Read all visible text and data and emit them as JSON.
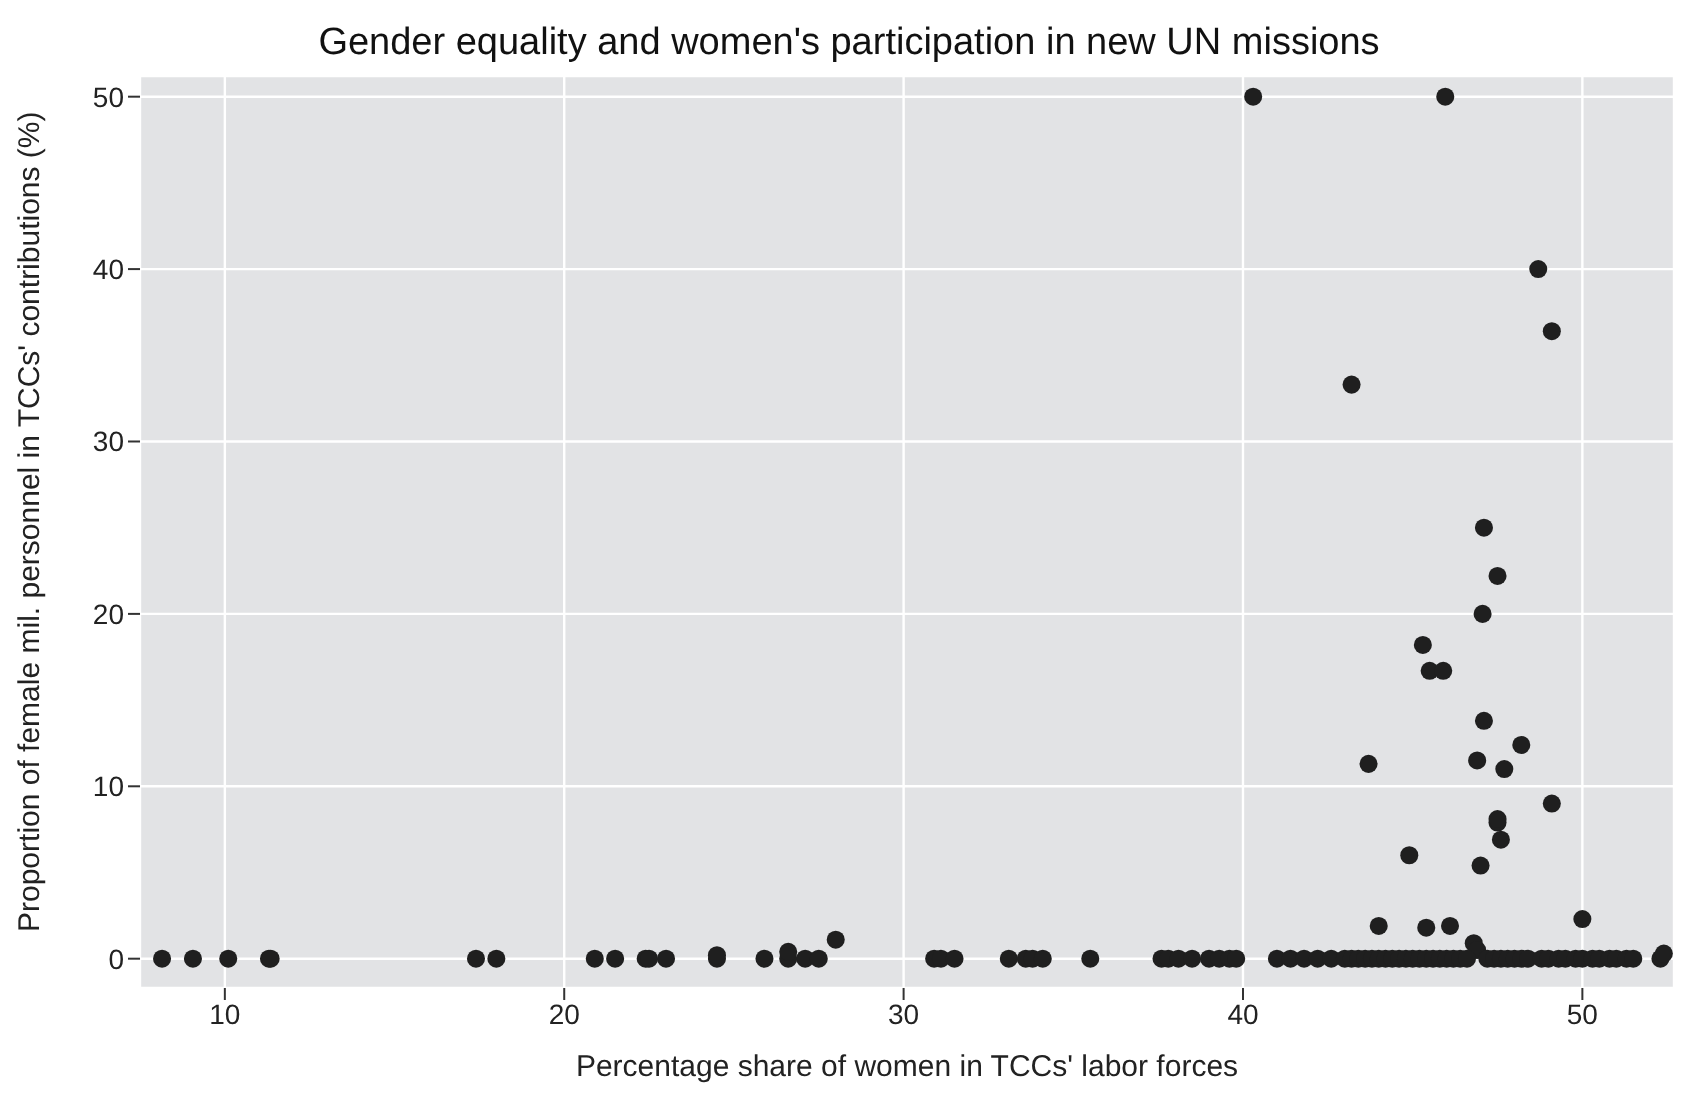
{
  "chart_data": {
    "type": "scatter",
    "title": "Gender equality and women's participation in new UN missions",
    "xlabel": "Percentage share of women in TCCs' labor forces",
    "ylabel": "Proportion of female mil. personnel in TCCs' contributions (%)",
    "x": [
      40.3,
      45.96,
      48.7,
      49.1,
      43.2,
      47.1,
      47.5,
      47.06,
      45.3,
      45.5,
      45.9,
      47.1,
      48.2,
      43.7,
      46.9,
      47.7,
      49.1,
      47.5,
      47.5,
      47.6,
      44.9,
      47.0,
      44.0,
      45.4,
      46.1,
      50.0,
      46.8,
      46.9,
      8.15,
      9.06,
      10.1,
      11.3,
      11.35,
      17.4,
      18.0,
      20.9,
      21.5,
      22.4,
      22.5,
      23.0,
      24.5,
      24.5,
      25.9,
      26.6,
      26.6,
      27.1,
      27.5,
      28.0,
      30.9,
      31.1,
      31.5,
      33.1,
      33.6,
      33.8,
      34.1,
      35.5,
      37.6,
      37.8,
      38.1,
      38.5,
      39.0,
      39.3,
      39.6,
      39.8,
      41.0,
      41.4,
      41.8,
      42.2,
      42.6,
      43.0,
      43.2,
      43.4,
      43.6,
      43.8,
      44.0,
      44.2,
      44.4,
      44.6,
      44.8,
      45.0,
      45.2,
      45.4,
      45.6,
      45.8,
      46.0,
      46.2,
      46.4,
      46.6,
      47.2,
      47.4,
      47.6,
      47.8,
      48.0,
      48.2,
      48.4,
      48.8,
      49.0,
      49.3,
      49.5,
      49.8,
      50.0,
      50.3,
      50.5,
      50.8,
      51.0,
      51.3,
      51.5,
      52.3,
      52.4
    ],
    "values": [
      50,
      50,
      40,
      36.4,
      33.3,
      25,
      22.2,
      20,
      18.2,
      16.7,
      16.7,
      13.8,
      12.4,
      11.3,
      11.5,
      11,
      9,
      7.9,
      8.1,
      6.9,
      6,
      5.4,
      1.9,
      1.8,
      1.9,
      2.3,
      0.9,
      0.5,
      0,
      0,
      0,
      0,
      0,
      0,
      0,
      0,
      0,
      0,
      0,
      0,
      0,
      0.2,
      0,
      0,
      0.4,
      0,
      0,
      1.1,
      0,
      0,
      0,
      0,
      0,
      0,
      0,
      0,
      0,
      0,
      0,
      0,
      0,
      0,
      0,
      0,
      0,
      0,
      0,
      0,
      0,
      0,
      0,
      0,
      0,
      0,
      0,
      0,
      0,
      0,
      0,
      0,
      0,
      0,
      0,
      0,
      0,
      0,
      0,
      0,
      0,
      0,
      0,
      0,
      0,
      0,
      0,
      0,
      0,
      0,
      0,
      0,
      0,
      0,
      0,
      0,
      0,
      0,
      0,
      0,
      0.3
    ],
    "color": "#1f1f1f",
    "marker": "circle",
    "grid": true,
    "xlim": [
      7.5,
      52.7
    ],
    "ylim": [
      -1.7,
      51.2
    ],
    "xticks": [
      10,
      20,
      30,
      40,
      50
    ],
    "yticks": [
      0,
      10,
      20,
      30,
      40,
      50
    ],
    "legend": false
  }
}
